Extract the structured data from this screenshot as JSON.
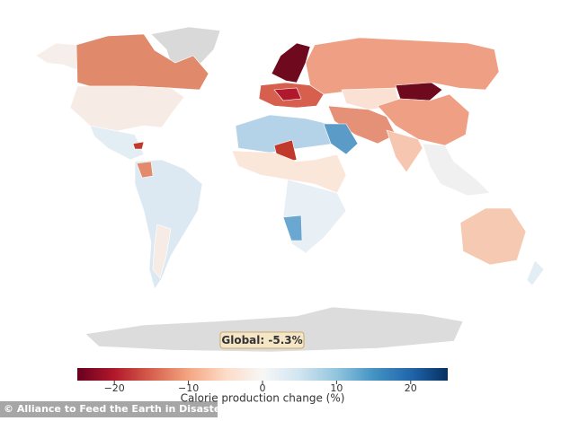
{
  "chart_data": {
    "type": "choropleth",
    "annotation": "Global: -5.3%",
    "colorbar_label": "Calorie production change (%)",
    "clim": [
      -25,
      25
    ],
    "colorbar_ticks": [
      {
        "value": -20,
        "label": "−20"
      },
      {
        "value": -10,
        "label": "−10"
      },
      0,
      10,
      20
    ],
    "credit": "© Alliance to Feed the Earth in Disasters"
  }
}
